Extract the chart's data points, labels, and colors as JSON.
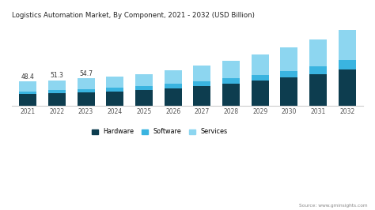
{
  "title": "Logistics Automation Market, By Component, 2021 - 2032 (USD Billion)",
  "years": [
    2021,
    2022,
    2023,
    2024,
    2025,
    2026,
    2027,
    2028,
    2029,
    2030,
    2031,
    2032
  ],
  "hardware": [
    24.0,
    25.5,
    27.5,
    29.5,
    32.0,
    35.5,
    39.5,
    44.5,
    50.0,
    56.5,
    64.0,
    73.0
  ],
  "software": [
    5.5,
    6.0,
    6.5,
    7.0,
    7.5,
    8.5,
    9.5,
    10.5,
    12.0,
    13.5,
    15.5,
    18.0
  ],
  "services": [
    18.9,
    19.8,
    20.7,
    22.5,
    24.5,
    27.5,
    31.0,
    35.0,
    40.0,
    46.0,
    53.0,
    60.0
  ],
  "labels": [
    "48.4",
    "51.3",
    "54.7"
  ],
  "label_years": [
    2021,
    2022,
    2023
  ],
  "colors": {
    "hardware": "#0d3d4f",
    "software": "#3ab4e0",
    "services": "#8dd6f0"
  },
  "background_color": "#ffffff",
  "ylim": [
    0,
    165
  ],
  "legend_labels": [
    "Hardware",
    "Software",
    "Services"
  ],
  "source_text": "Source: www.gminsights.com",
  "bar_width": 0.6
}
